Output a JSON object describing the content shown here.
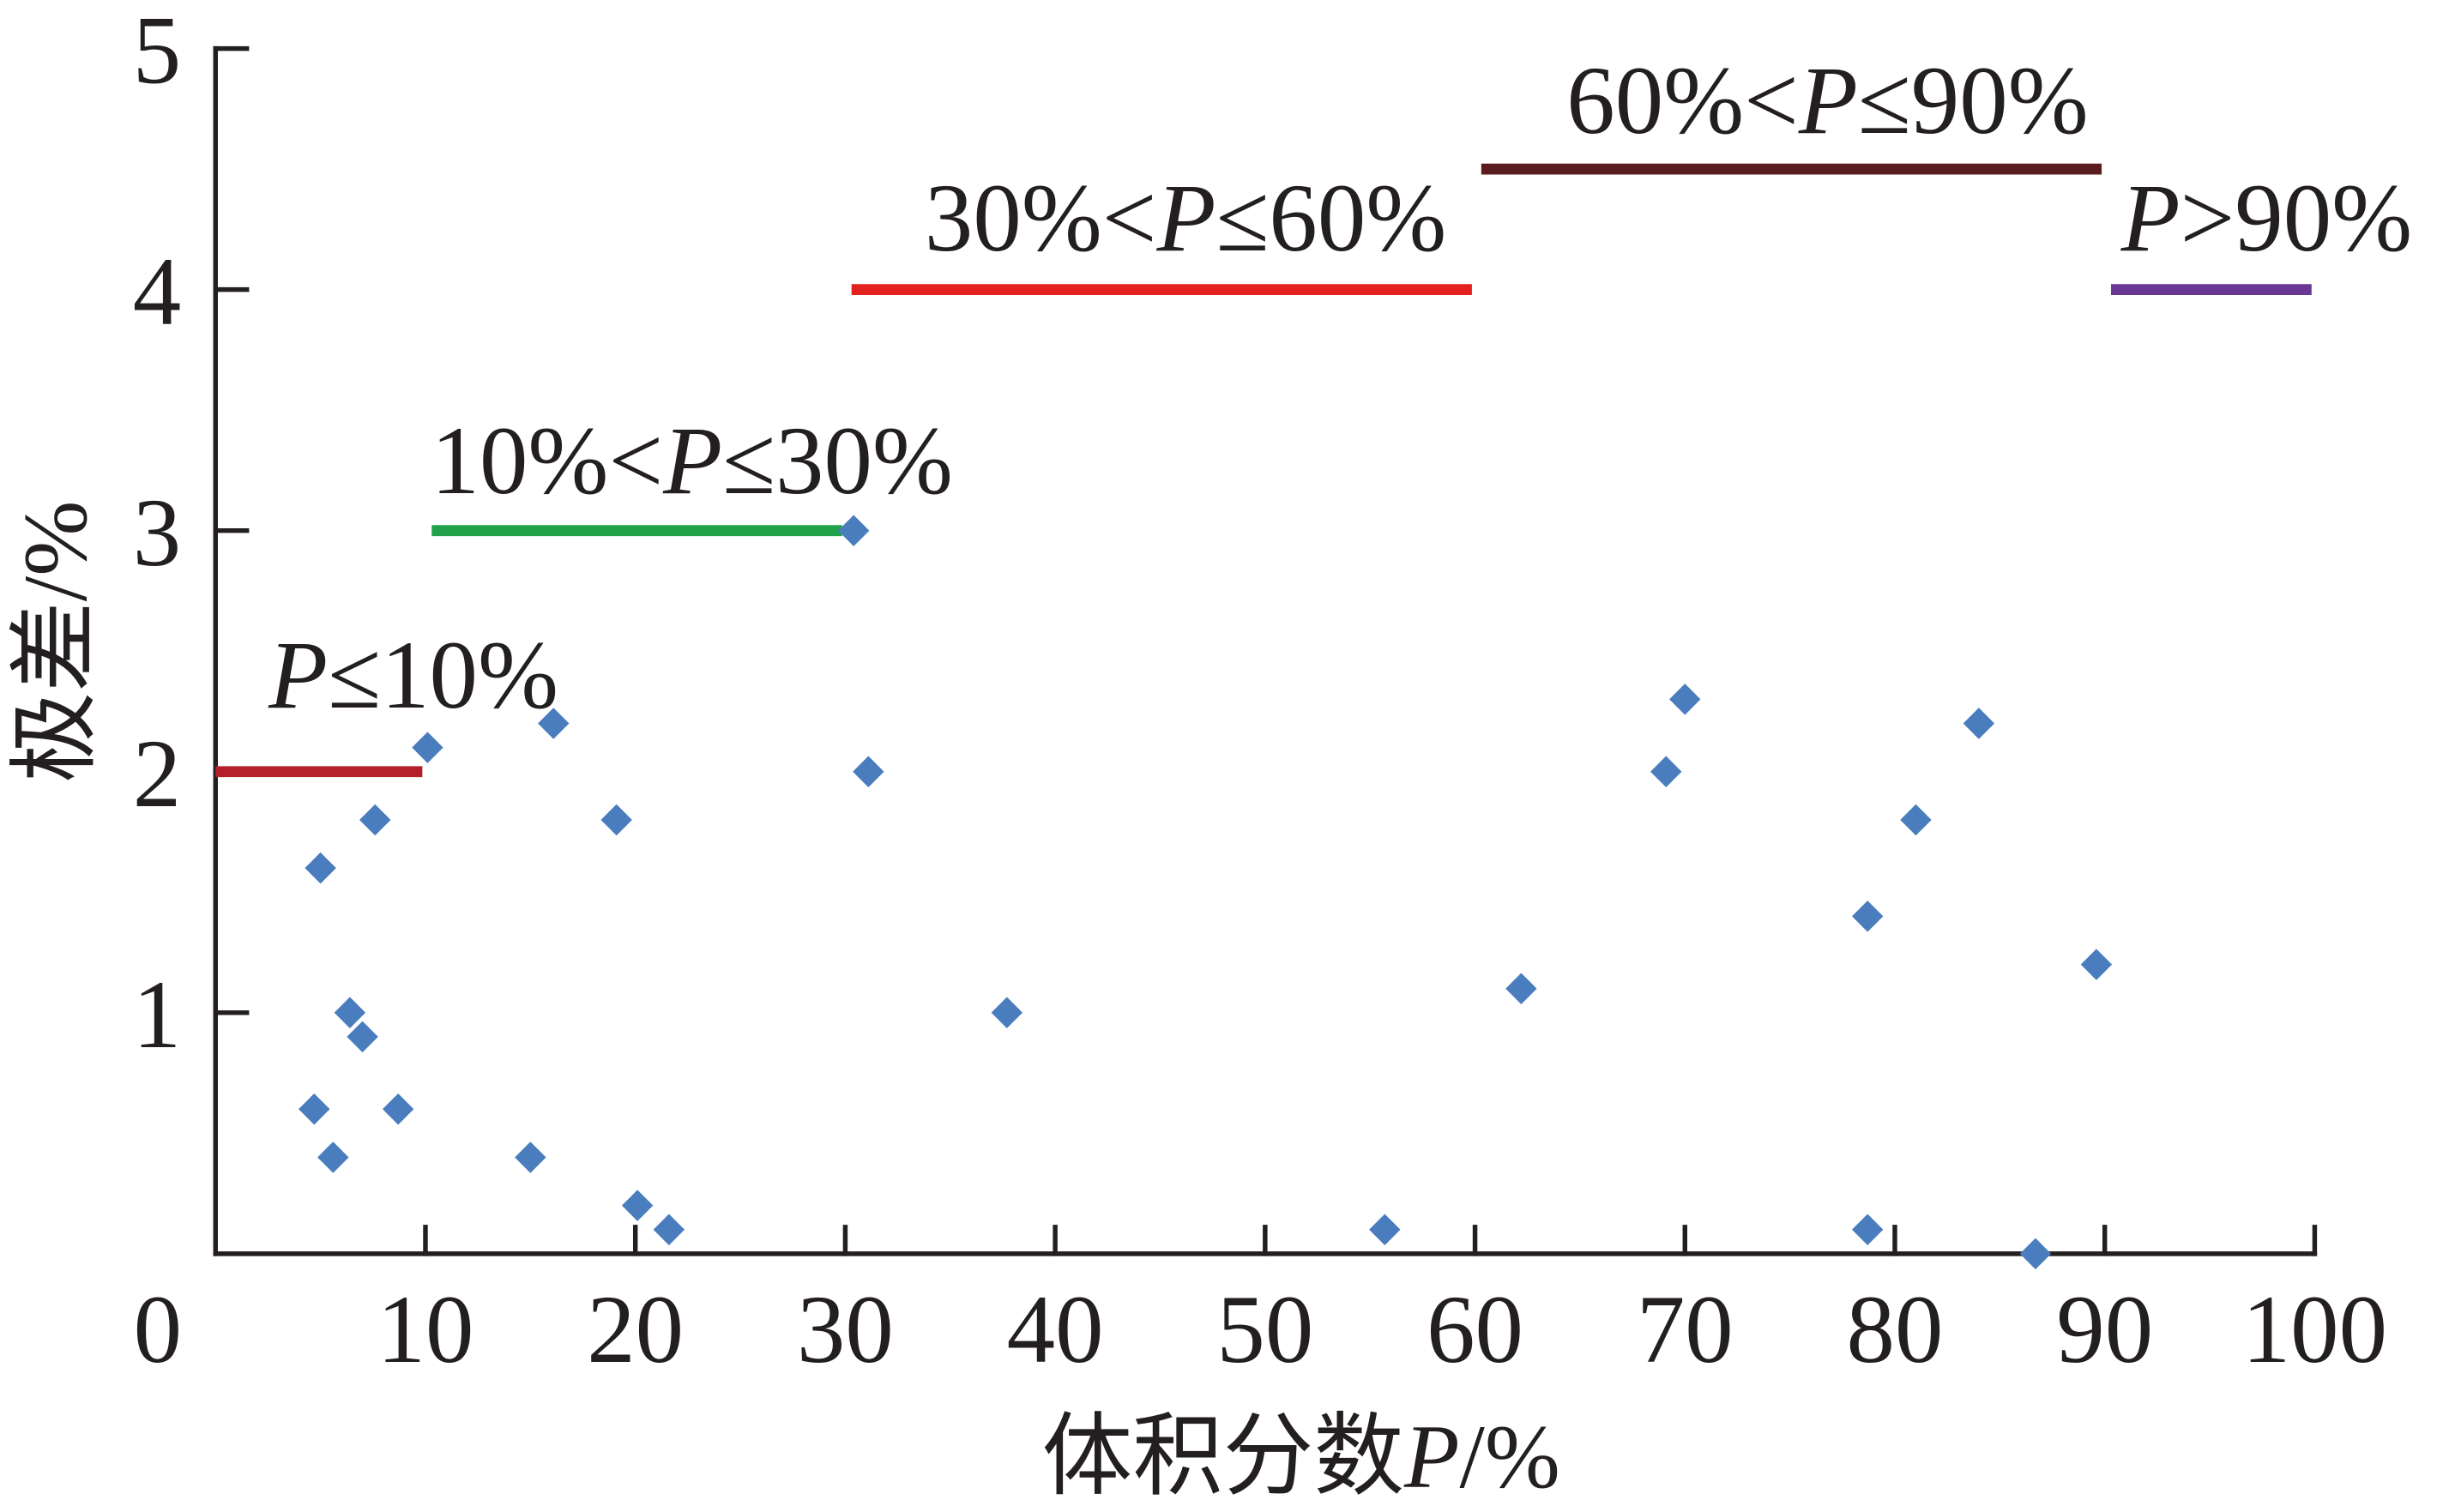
{
  "chart_data": {
    "type": "scatter",
    "title": "",
    "xlabel": "体积分数P/%",
    "ylabel": "极差/%",
    "xlim": [
      0,
      100
    ],
    "ylim": [
      0,
      5
    ],
    "x_ticks": [
      0,
      10,
      20,
      30,
      40,
      50,
      60,
      70,
      80,
      90,
      100
    ],
    "y_ticks": [
      1,
      2,
      3,
      4,
      5
    ],
    "grid": false,
    "point_color": "#4a7dbd",
    "points": [
      [
        5.0,
        1.6
      ],
      [
        4.7,
        0.6
      ],
      [
        5.6,
        0.4
      ],
      [
        6.4,
        1.0
      ],
      [
        7.0,
        0.9
      ],
      [
        7.6,
        1.8
      ],
      [
        8.7,
        0.6
      ],
      [
        10.1,
        2.1
      ],
      [
        15.0,
        0.4
      ],
      [
        16.1,
        2.2
      ],
      [
        19.1,
        1.8
      ],
      [
        20.1,
        0.2
      ],
      [
        21.6,
        0.1
      ],
      [
        30.4,
        3.0
      ],
      [
        31.1,
        2.0
      ],
      [
        37.7,
        1.0
      ],
      [
        55.7,
        0.1
      ],
      [
        62.2,
        1.1
      ],
      [
        69.1,
        2.0
      ],
      [
        70.0,
        2.3
      ],
      [
        78.7,
        1.4
      ],
      [
        78.7,
        0.1
      ],
      [
        81.0,
        1.8
      ],
      [
        84.0,
        2.2
      ],
      [
        86.7,
        0.0
      ],
      [
        89.6,
        1.2
      ]
    ],
    "segments": [
      {
        "label": "P≤10%",
        "x": [
          0,
          10
        ],
        "y": 2,
        "color": "#b31f2b"
      },
      {
        "label": "10%<P≤30%",
        "x": [
          10,
          30
        ],
        "y": 3,
        "color": "#22a24b"
      },
      {
        "label": "30%<P≤60%",
        "x": [
          30,
          60
        ],
        "y": 4,
        "color": "#e32220"
      },
      {
        "label": "60%<P≤90%",
        "x": [
          60,
          90
        ],
        "y": 4.5,
        "color": "#5a1c1e"
      },
      {
        "label": "P>90%",
        "x": [
          90,
          100
        ],
        "y": 4,
        "color": "#6a3795"
      }
    ]
  }
}
